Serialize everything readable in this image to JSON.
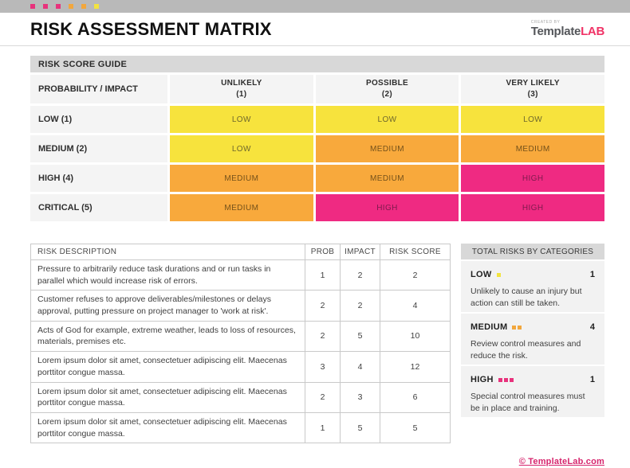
{
  "palette": {
    "yellow": "#F7E33D",
    "orange": "#F8A93C",
    "pink": "#EF2A82",
    "square_pink": "#E8327C",
    "square_orange": "#F2A73D",
    "square_yellow": "#F2E340",
    "header_bar_gray": "#D8D8D8",
    "top_bar_gray": "#B9B9B9",
    "footer_accent": "#D6256D"
  },
  "brand_squares": [
    "#E8327C",
    "#E8327C",
    "#E8327C",
    "#F2A73D",
    "#F2A73D",
    "#F2E340"
  ],
  "header": {
    "title": "RISK ASSESSMENT MATRIX",
    "logo": {
      "created_by": "CREATED BY",
      "name_primary": "Template",
      "name_accent": "LAB"
    }
  },
  "matrix": {
    "section_title": "RISK SCORE GUIDE",
    "corner_label": "PROBABILITY  /  IMPACT",
    "columns": [
      {
        "label": "UNLIKELY",
        "value": "(1)"
      },
      {
        "label": "POSSIBLE",
        "value": "(2)"
      },
      {
        "label": "VERY LIKELY",
        "value": "(3)"
      }
    ],
    "rows": [
      {
        "label": "LOW (1)",
        "cells": [
          "LOW",
          "LOW",
          "LOW"
        ]
      },
      {
        "label": "MEDIUM (2)",
        "cells": [
          "LOW",
          "MEDIUM",
          "MEDIUM"
        ]
      },
      {
        "label": "HIGH (4)",
        "cells": [
          "MEDIUM",
          "MEDIUM",
          "HIGH"
        ]
      },
      {
        "label": "CRITICAL (5)",
        "cells": [
          "MEDIUM",
          "HIGH",
          "HIGH"
        ]
      }
    ]
  },
  "risk_table": {
    "headers": [
      "RISK DESCRIPTION",
      "PROB",
      "IMPACT",
      "RISK SCORE"
    ],
    "rows": [
      {
        "description": "Pressure to arbitrarily reduce task durations and or run tasks in parallel which would increase risk of errors.",
        "prob": "1",
        "impact": "2",
        "score": "2"
      },
      {
        "description": "Customer refuses to approve deliverables/milestones or delays approval, putting pressure on project manager to 'work at risk'.",
        "prob": "2",
        "impact": "2",
        "score": "4"
      },
      {
        "description": "Acts of God for example, extreme weather, leads to loss of resources, materials, premises etc.",
        "prob": "2",
        "impact": "5",
        "score": "10"
      },
      {
        "description": "Lorem ipsum dolor sit amet, consectetuer adipiscing elit. Maecenas porttitor congue massa.",
        "prob": "3",
        "impact": "4",
        "score": "12"
      },
      {
        "description": "Lorem ipsum dolor sit amet, consectetuer adipiscing elit. Maecenas porttitor congue massa.",
        "prob": "2",
        "impact": "3",
        "score": "6"
      },
      {
        "description": "Lorem ipsum dolor sit amet, consectetuer adipiscing elit. Maecenas porttitor congue massa.",
        "prob": "1",
        "impact": "5",
        "score": "5"
      }
    ]
  },
  "categories": {
    "title": "TOTAL RISKS BY CATEGORIES",
    "items": [
      {
        "label": "LOW",
        "count": "1",
        "note": "Unlikely to cause an injury but action can still be taken."
      },
      {
        "label": "MEDIUM",
        "count": "4",
        "note": "Review control measures and reduce the risk."
      },
      {
        "label": "HIGH",
        "count": "1",
        "note": "Special control measures must be in place and training."
      }
    ]
  },
  "footer": {
    "link": "© TemplateLab.com"
  }
}
